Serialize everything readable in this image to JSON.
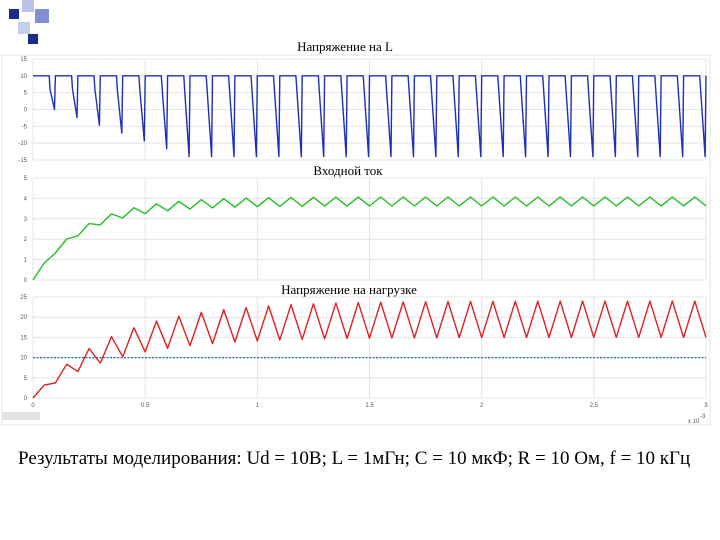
{
  "caption": "Результаты моделирования: Ud = 10В; L = 1мГн; C = 10 мкФ; R = 10 Ом, f = 10 кГц",
  "x_exponent_label": "x 10",
  "x_exponent_power": "-3",
  "status_text": "",
  "colors": {
    "blue": "#1f2fb8",
    "green": "#22c022",
    "red": "#e02020",
    "reference": "#1f6fb8"
  },
  "chart_data": [
    {
      "type": "line",
      "title": "Напряжение на L",
      "ylim": [
        -15,
        15
      ],
      "yticks": [
        "15",
        "10",
        "5",
        "0",
        "-5",
        "-10",
        "-15"
      ],
      "ytick_values": [
        15,
        10,
        5,
        0,
        -5,
        -10,
        -15
      ],
      "xlim": [
        0,
        3
      ],
      "series": [
        {
          "pattern": "switching sawtooth",
          "period": 0.1,
          "duty": 0.72,
          "high_value": 10,
          "start_low": 0,
          "end_low": -14,
          "low_settle_time": 0.6
        }
      ]
    },
    {
      "type": "line",
      "title": "Входной ток",
      "ylim": [
        0,
        5
      ],
      "yticks": [
        "5",
        "4",
        "3",
        "2",
        "1",
        "0"
      ],
      "ytick_values": [
        5,
        4,
        3,
        2,
        1,
        0
      ],
      "xlim": [
        0,
        3
      ],
      "series": [
        {
          "pattern": "rising with ripple",
          "start": 0,
          "steady_mean": 3.85,
          "ripple": 0.22,
          "period": 0.1,
          "time_constant": 0.22
        }
      ]
    },
    {
      "type": "line",
      "title": "Напряжение на нагрузке",
      "ylim": [
        0,
        25
      ],
      "yticks": [
        "25",
        "20",
        "15",
        "10",
        "5",
        "0"
      ],
      "ytick_values": [
        25,
        20,
        15,
        10,
        5,
        0
      ],
      "xlim": [
        0,
        3
      ],
      "xticks": [
        "0",
        "0.5",
        "1",
        "1.5",
        "2",
        "2.5",
        "3"
      ],
      "xtick_values": [
        0,
        0.5,
        1,
        1.5,
        2,
        2.5,
        3
      ],
      "series": [
        {
          "pattern": "rising with ripple",
          "start": 0,
          "steady_min": 15,
          "steady_max": 24,
          "period": 0.1,
          "time_constant": 0.35
        },
        {
          "pattern": "reference line",
          "value": 10
        }
      ]
    }
  ]
}
